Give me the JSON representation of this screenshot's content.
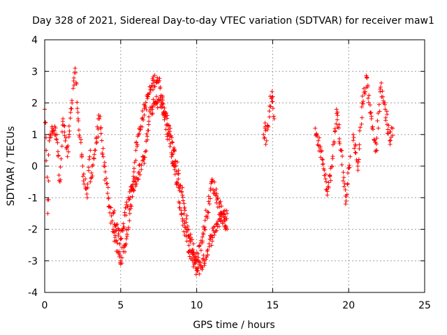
{
  "chart_data": {
    "type": "scatter",
    "title": "Day 328 of 2021, Sidereal Day-to-day VTEC variation (SDTVAR) for receiver maw1",
    "xlabel": "GPS time / hours",
    "ylabel": "SDTVAR / TECUs",
    "xlim": [
      0,
      25
    ],
    "ylim": [
      -4,
      4
    ],
    "xticks": [
      0,
      5,
      10,
      15,
      20,
      25
    ],
    "yticks": [
      -4,
      -3,
      -2,
      -1,
      0,
      1,
      2,
      3,
      4
    ],
    "x_tick_labels": [
      "0",
      "5",
      "10",
      "15",
      "20",
      "25"
    ],
    "y_tick_labels": [
      "-4",
      "-3",
      "-2",
      "-1",
      "0",
      "1",
      "2",
      "3",
      "4"
    ],
    "grid": true,
    "marker": "+",
    "color": "#ff0000",
    "series": [
      {
        "name": "SDTVAR",
        "segments": [
          {
            "id": "early-cluster",
            "x": [
              0.0,
              0.1,
              0.2,
              0.3,
              0.5,
              0.8,
              1.0,
              1.2,
              1.5,
              1.8,
              2.0,
              2.2,
              2.5,
              2.8,
              3.0
            ],
            "y": [
              1.8,
              0.5,
              -1.5,
              0.8,
              1.2,
              1.0,
              -0.5,
              1.5,
              0.3,
              2.0,
              3.1,
              1.5,
              0.0,
              -1.0,
              0.5
            ]
          },
          {
            "id": "morning-track-a",
            "x": [
              3.0,
              3.3,
              3.6,
              3.9,
              4.2,
              4.5,
              4.8,
              5.0,
              5.3,
              5.6,
              6.0,
              6.4,
              6.8,
              7.0,
              7.2,
              7.4,
              7.6,
              8.0,
              8.5,
              9.0,
              9.5,
              10.0,
              10.5,
              11.0,
              11.5,
              12.0
            ],
            "y": [
              -0.5,
              0.5,
              1.5,
              0.0,
              -1.0,
              -2.0,
              -2.7,
              -3.0,
              -2.5,
              -1.5,
              0.5,
              1.5,
              2.2,
              2.5,
              2.7,
              2.8,
              2.5,
              1.3,
              0.0,
              -1.5,
              -2.7,
              -3.3,
              -3.0,
              -2.2,
              -1.7,
              -1.5
            ]
          },
          {
            "id": "morning-track-b",
            "x": [
              4.5,
              5.0,
              5.5,
              6.0,
              6.5,
              7.0,
              7.5,
              8.0,
              8.5,
              9.0,
              9.5,
              10.0,
              10.5,
              11.0,
              11.5,
              12.0
            ],
            "y": [
              -1.5,
              -2.3,
              -1.0,
              -0.5,
              0.2,
              1.8,
              2.1,
              1.6,
              0.5,
              -0.8,
              -2.2,
              -3.0,
              -2.0,
              -0.5,
              -1.2,
              -2.0
            ]
          },
          {
            "id": "gap-cluster",
            "x": [
              14.4,
              14.5,
              14.6,
              14.8,
              15.0,
              15.1
            ],
            "y": [
              1.0,
              1.2,
              0.8,
              1.9,
              2.2,
              1.5
            ]
          },
          {
            "id": "evening-cluster-a",
            "x": [
              17.8,
              18.0,
              18.3,
              18.6,
              18.9,
              19.2,
              19.5,
              19.8,
              20.1
            ],
            "y": [
              1.2,
              0.8,
              0.2,
              -0.8,
              0.0,
              1.8,
              0.5,
              -1.2,
              0.3
            ]
          },
          {
            "id": "evening-cluster-b",
            "x": [
              20.3,
              20.6,
              20.9,
              21.2,
              21.5,
              21.8,
              22.1,
              22.4,
              22.7,
              22.9
            ],
            "y": [
              1.0,
              0.0,
              2.0,
              2.8,
              1.5,
              0.5,
              2.5,
              1.8,
              0.8,
              1.2
            ]
          }
        ]
      }
    ]
  }
}
